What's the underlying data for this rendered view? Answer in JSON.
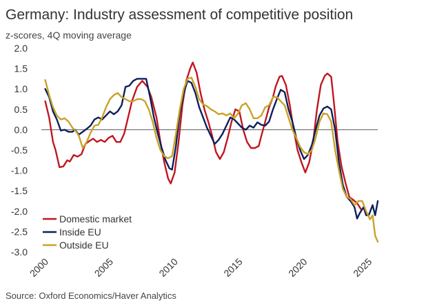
{
  "chart_data": {
    "type": "line",
    "title": "Germany: Industry assessment of competitive position",
    "subtitle": "z-scores, 4Q moving average",
    "source": "Source: Oxford Economics/Haver Analytics",
    "xlabel": "",
    "ylabel": "",
    "xlim": [
      2000,
      2026
    ],
    "ylim": [
      -3.0,
      2.0
    ],
    "x_ticks": [
      2000,
      2005,
      2010,
      2015,
      2020,
      2025
    ],
    "y_ticks": [
      2.0,
      1.5,
      1.0,
      0.5,
      0.0,
      -0.5,
      -1.0,
      -1.5,
      -2.0,
      -2.5,
      -3.0
    ],
    "x_tick_labels": [
      "2000",
      "2005",
      "2010",
      "2015",
      "2020",
      "2025"
    ],
    "y_tick_labels": [
      "2.0",
      "1.5",
      "1.0",
      "0.5",
      "0.0",
      "-0.5",
      "-1.0",
      "-1.5",
      "-2.0",
      "-2.5",
      "-3.0"
    ],
    "legend_position": "bottom-left",
    "series": [
      {
        "name": "Domestic market",
        "color": "#c0161f",
        "points": [
          [
            2000.3,
            0.7
          ],
          [
            2000.6,
            0.3
          ],
          [
            2000.9,
            -0.3
          ],
          [
            2001.1,
            -0.5
          ],
          [
            2001.4,
            -0.92
          ],
          [
            2001.7,
            -0.9
          ],
          [
            2002.0,
            -0.75
          ],
          [
            2002.2,
            -0.78
          ],
          [
            2002.5,
            -0.62
          ],
          [
            2002.8,
            -0.66
          ],
          [
            2003.1,
            -0.6
          ],
          [
            2003.4,
            -0.35
          ],
          [
            2003.7,
            -0.28
          ],
          [
            2004.0,
            -0.22
          ],
          [
            2004.3,
            -0.3
          ],
          [
            2004.6,
            -0.25
          ],
          [
            2004.9,
            -0.3
          ],
          [
            2005.2,
            -0.2
          ],
          [
            2005.5,
            -0.15
          ],
          [
            2005.8,
            -0.3
          ],
          [
            2006.1,
            -0.3
          ],
          [
            2006.4,
            -0.1
          ],
          [
            2006.7,
            0.3
          ],
          [
            2007.0,
            0.7
          ],
          [
            2007.4,
            1.05
          ],
          [
            2007.8,
            1.2
          ],
          [
            2008.2,
            1.05
          ],
          [
            2008.5,
            0.8
          ],
          [
            2008.9,
            0.3
          ],
          [
            2009.2,
            -0.3
          ],
          [
            2009.5,
            -0.8
          ],
          [
            2009.8,
            -1.2
          ],
          [
            2010.0,
            -1.32
          ],
          [
            2010.3,
            -1.05
          ],
          [
            2010.6,
            -0.3
          ],
          [
            2010.9,
            0.6
          ],
          [
            2011.2,
            1.2
          ],
          [
            2011.5,
            1.5
          ],
          [
            2011.7,
            1.65
          ],
          [
            2012.0,
            1.4
          ],
          [
            2012.3,
            0.9
          ],
          [
            2012.6,
            0.5
          ],
          [
            2012.9,
            0.2
          ],
          [
            2013.2,
            -0.15
          ],
          [
            2013.5,
            -0.55
          ],
          [
            2013.8,
            -0.72
          ],
          [
            2014.1,
            -0.55
          ],
          [
            2014.4,
            -0.2
          ],
          [
            2014.7,
            0.2
          ],
          [
            2015.0,
            0.5
          ],
          [
            2015.3,
            0.45
          ],
          [
            2015.6,
            0.0
          ],
          [
            2015.9,
            -0.3
          ],
          [
            2016.2,
            -0.45
          ],
          [
            2016.5,
            -0.45
          ],
          [
            2016.8,
            -0.4
          ],
          [
            2017.0,
            -0.15
          ],
          [
            2017.3,
            0.2
          ],
          [
            2017.6,
            0.55
          ],
          [
            2017.9,
            0.8
          ],
          [
            2018.1,
            1.05
          ],
          [
            2018.4,
            1.3
          ],
          [
            2018.6,
            1.32
          ],
          [
            2018.9,
            1.1
          ],
          [
            2019.2,
            0.6
          ],
          [
            2019.5,
            0.0
          ],
          [
            2019.8,
            -0.5
          ],
          [
            2020.1,
            -0.8
          ],
          [
            2020.4,
            -1.05
          ],
          [
            2020.7,
            -0.8
          ],
          [
            2021.0,
            -0.3
          ],
          [
            2021.3,
            0.5
          ],
          [
            2021.6,
            1.1
          ],
          [
            2021.9,
            1.32
          ],
          [
            2022.1,
            1.38
          ],
          [
            2022.4,
            1.3
          ],
          [
            2022.6,
            0.7
          ],
          [
            2022.9,
            -0.3
          ],
          [
            2023.2,
            -0.9
          ],
          [
            2023.5,
            -1.3
          ],
          [
            2023.8,
            -1.65
          ],
          [
            2024.1,
            -1.72
          ],
          [
            2024.4,
            -1.8
          ],
          [
            2024.7,
            -1.95
          ]
        ]
      },
      {
        "name": "Inside EU",
        "color": "#0c1f5c",
        "points": [
          [
            2000.3,
            1.0
          ],
          [
            2000.6,
            0.8
          ],
          [
            2000.9,
            0.45
          ],
          [
            2001.2,
            0.25
          ],
          [
            2001.5,
            -0.02
          ],
          [
            2001.8,
            0.0
          ],
          [
            2002.1,
            -0.05
          ],
          [
            2002.4,
            -0.05
          ],
          [
            2002.6,
            0.0
          ],
          [
            2002.9,
            -0.12
          ],
          [
            2003.2,
            -0.05
          ],
          [
            2003.5,
            0.02
          ],
          [
            2003.8,
            0.1
          ],
          [
            2004.1,
            0.25
          ],
          [
            2004.4,
            0.3
          ],
          [
            2004.7,
            0.25
          ],
          [
            2005.0,
            0.35
          ],
          [
            2005.3,
            0.45
          ],
          [
            2005.6,
            0.38
          ],
          [
            2005.9,
            0.45
          ],
          [
            2006.2,
            0.6
          ],
          [
            2006.5,
            1.05
          ],
          [
            2006.8,
            1.08
          ],
          [
            2007.1,
            1.2
          ],
          [
            2007.4,
            1.25
          ],
          [
            2007.8,
            1.25
          ],
          [
            2008.1,
            1.25
          ],
          [
            2008.4,
            0.8
          ],
          [
            2008.7,
            0.3
          ],
          [
            2009.0,
            -0.1
          ],
          [
            2009.3,
            -0.45
          ],
          [
            2009.6,
            -0.75
          ],
          [
            2009.9,
            -0.95
          ],
          [
            2010.1,
            -0.98
          ],
          [
            2010.4,
            -0.4
          ],
          [
            2010.7,
            0.4
          ],
          [
            2011.0,
            0.9
          ],
          [
            2011.3,
            1.2
          ],
          [
            2011.6,
            1.15
          ],
          [
            2011.9,
            0.9
          ],
          [
            2012.2,
            0.55
          ],
          [
            2012.5,
            0.3
          ],
          [
            2012.8,
            0.05
          ],
          [
            2013.1,
            -0.15
          ],
          [
            2013.4,
            -0.35
          ],
          [
            2013.7,
            -0.25
          ],
          [
            2014.0,
            -0.1
          ],
          [
            2014.3,
            0.1
          ],
          [
            2014.6,
            0.3
          ],
          [
            2014.9,
            0.25
          ],
          [
            2015.2,
            0.15
          ],
          [
            2015.5,
            0.05
          ],
          [
            2015.8,
            0.0
          ],
          [
            2016.1,
            0.1
          ],
          [
            2016.4,
            0.05
          ],
          [
            2016.7,
            0.18
          ],
          [
            2017.0,
            0.12
          ],
          [
            2017.3,
            0.1
          ],
          [
            2017.6,
            0.2
          ],
          [
            2017.9,
            0.5
          ],
          [
            2018.2,
            0.75
          ],
          [
            2018.5,
            0.98
          ],
          [
            2018.8,
            0.92
          ],
          [
            2019.1,
            0.5
          ],
          [
            2019.4,
            0.2
          ],
          [
            2019.7,
            -0.2
          ],
          [
            2020.0,
            -0.5
          ],
          [
            2020.3,
            -0.72
          ],
          [
            2020.6,
            -0.62
          ],
          [
            2020.9,
            -0.38
          ],
          [
            2021.2,
            0.0
          ],
          [
            2021.5,
            0.35
          ],
          [
            2021.8,
            0.52
          ],
          [
            2022.1,
            0.57
          ],
          [
            2022.4,
            0.5
          ],
          [
            2022.7,
            0.0
          ],
          [
            2023.0,
            -0.8
          ],
          [
            2023.3,
            -1.35
          ],
          [
            2023.6,
            -1.65
          ],
          [
            2023.9,
            -1.75
          ],
          [
            2024.2,
            -1.9
          ],
          [
            2024.4,
            -2.18
          ],
          [
            2024.6,
            -2.05
          ],
          [
            2024.9,
            -1.9
          ],
          [
            2025.1,
            -2.1
          ],
          [
            2025.3,
            -2.1
          ],
          [
            2025.6,
            -1.85
          ],
          [
            2025.8,
            -2.1
          ],
          [
            2026.0,
            -1.75
          ]
        ]
      },
      {
        "name": "Outside EU",
        "color": "#c9a227",
        "points": [
          [
            2000.3,
            1.22
          ],
          [
            2000.6,
            0.85
          ],
          [
            2000.9,
            0.55
          ],
          [
            2001.2,
            0.35
          ],
          [
            2001.5,
            0.25
          ],
          [
            2001.8,
            0.28
          ],
          [
            2002.1,
            0.2
          ],
          [
            2002.4,
            0.05
          ],
          [
            2002.7,
            -0.05
          ],
          [
            2002.9,
            -0.15
          ],
          [
            2003.2,
            -0.45
          ],
          [
            2003.5,
            -0.3
          ],
          [
            2003.8,
            -0.08
          ],
          [
            2004.1,
            0.1
          ],
          [
            2004.4,
            0.12
          ],
          [
            2004.7,
            0.3
          ],
          [
            2005.0,
            0.55
          ],
          [
            2005.3,
            0.75
          ],
          [
            2005.6,
            0.85
          ],
          [
            2005.9,
            0.9
          ],
          [
            2006.2,
            0.8
          ],
          [
            2006.5,
            0.75
          ],
          [
            2006.8,
            0.7
          ],
          [
            2007.1,
            0.7
          ],
          [
            2007.4,
            0.75
          ],
          [
            2007.7,
            0.75
          ],
          [
            2008.0,
            0.7
          ],
          [
            2008.3,
            0.5
          ],
          [
            2008.6,
            0.2
          ],
          [
            2008.9,
            -0.2
          ],
          [
            2009.2,
            -0.5
          ],
          [
            2009.5,
            -0.65
          ],
          [
            2009.8,
            -0.7
          ],
          [
            2010.1,
            -0.65
          ],
          [
            2010.4,
            -0.1
          ],
          [
            2010.7,
            0.5
          ],
          [
            2011.0,
            1.0
          ],
          [
            2011.3,
            1.25
          ],
          [
            2011.6,
            1.28
          ],
          [
            2011.9,
            1.05
          ],
          [
            2012.2,
            0.75
          ],
          [
            2012.5,
            0.62
          ],
          [
            2012.8,
            0.58
          ],
          [
            2013.1,
            0.5
          ],
          [
            2013.4,
            0.45
          ],
          [
            2013.7,
            0.38
          ],
          [
            2014.0,
            0.4
          ],
          [
            2014.3,
            0.35
          ],
          [
            2014.6,
            0.4
          ],
          [
            2014.9,
            0.28
          ],
          [
            2015.2,
            0.4
          ],
          [
            2015.5,
            0.6
          ],
          [
            2015.8,
            0.65
          ],
          [
            2016.1,
            0.5
          ],
          [
            2016.4,
            0.28
          ],
          [
            2016.7,
            0.28
          ],
          [
            2017.0,
            0.35
          ],
          [
            2017.3,
            0.55
          ],
          [
            2017.6,
            0.6
          ],
          [
            2017.9,
            0.8
          ],
          [
            2018.2,
            0.8
          ],
          [
            2018.5,
            0.7
          ],
          [
            2018.8,
            0.6
          ],
          [
            2019.1,
            0.3
          ],
          [
            2019.4,
            0.0
          ],
          [
            2019.7,
            -0.2
          ],
          [
            2020.0,
            -0.42
          ],
          [
            2020.3,
            -0.55
          ],
          [
            2020.6,
            -0.6
          ],
          [
            2020.9,
            -0.5
          ],
          [
            2021.2,
            -0.2
          ],
          [
            2021.5,
            0.2
          ],
          [
            2021.8,
            0.4
          ],
          [
            2022.1,
            0.38
          ],
          [
            2022.4,
            0.2
          ],
          [
            2022.7,
            -0.5
          ],
          [
            2023.0,
            -1.0
          ],
          [
            2023.3,
            -1.45
          ],
          [
            2023.6,
            -1.65
          ],
          [
            2023.9,
            -1.7
          ],
          [
            2024.2,
            -1.85
          ],
          [
            2024.5,
            -1.75
          ],
          [
            2024.8,
            -1.75
          ],
          [
            2025.1,
            -2.0
          ],
          [
            2025.4,
            -2.2
          ],
          [
            2025.6,
            -2.1
          ],
          [
            2025.8,
            -2.6
          ],
          [
            2026.0,
            -2.75
          ]
        ]
      }
    ]
  }
}
